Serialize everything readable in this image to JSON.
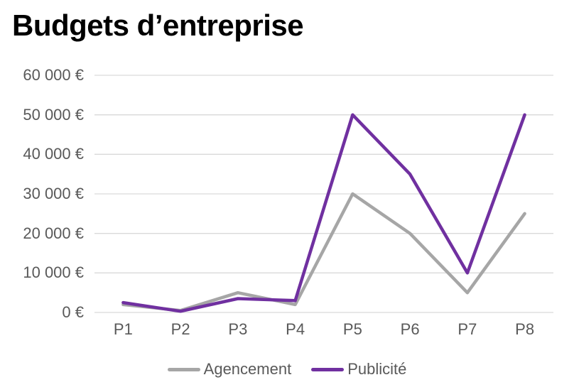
{
  "page": {
    "background": "#FFFFFF"
  },
  "chart_data": {
    "type": "line",
    "title": "Budgets d’entreprise",
    "categories": [
      "P1",
      "P2",
      "P3",
      "P4",
      "P5",
      "P6",
      "P7",
      "P8"
    ],
    "series": [
      {
        "name": "Agencement",
        "color": "#A6A6A6",
        "values": [
          2000,
          500,
          5000,
          2000,
          30000,
          20000,
          5000,
          25000
        ]
      },
      {
        "name": "Publicité",
        "color": "#7030A0",
        "values": [
          2500,
          300,
          3500,
          3000,
          50000,
          35000,
          10000,
          50000
        ]
      }
    ],
    "xlabel": "",
    "ylabel": "",
    "ylim": [
      0,
      60000
    ],
    "y_tick_step": 10000,
    "y_tick_labels": [
      "0 €",
      "10 000 €",
      "20 000 €",
      "30 000 €",
      "40 000 €",
      "50 000 €",
      "60 000 €"
    ],
    "grid": "horizontal-only",
    "legend_position": "bottom",
    "colors": {
      "grid": "#D9D9D9",
      "axis_text": "#595959",
      "title_text": "#000000",
      "background": "#FFFFFF"
    }
  }
}
